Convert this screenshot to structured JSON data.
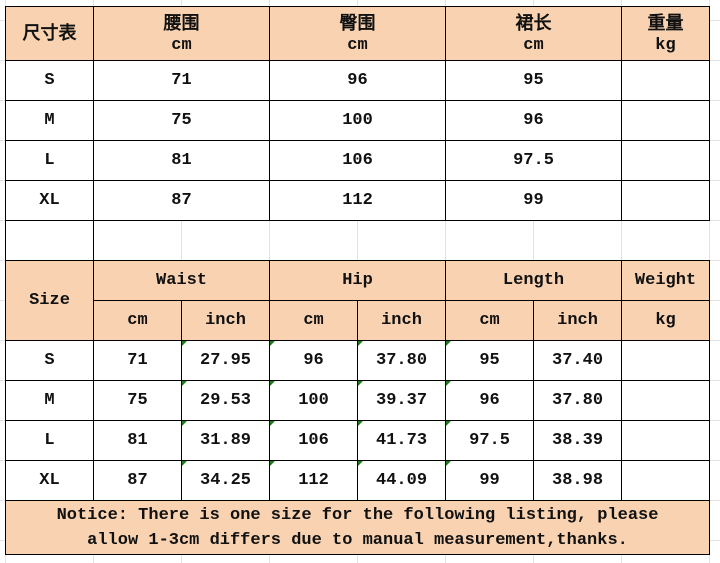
{
  "cn_table": {
    "corner": "尺寸表",
    "headers": [
      {
        "label": "腰围",
        "unit": "cm"
      },
      {
        "label": "臀围",
        "unit": "cm"
      },
      {
        "label": "裙长",
        "unit": "cm"
      },
      {
        "label": "重量",
        "unit": "kg"
      }
    ],
    "rows": [
      [
        "S",
        "71",
        "96",
        "95",
        ""
      ],
      [
        "M",
        "75",
        "100",
        "96",
        ""
      ],
      [
        "L",
        "81",
        "106",
        "97.5",
        ""
      ],
      [
        "XL",
        "87",
        "112",
        "99",
        ""
      ]
    ]
  },
  "en_table": {
    "corner": "Size",
    "groups": [
      "Waist",
      "Hip",
      "Length",
      "Weight"
    ],
    "units": [
      "cm",
      "inch",
      "cm",
      "inch",
      "cm",
      "inch",
      "kg"
    ],
    "rows": [
      [
        "S",
        "71",
        "27.95",
        "96",
        "37.80",
        "95",
        "37.40",
        ""
      ],
      [
        "M",
        "75",
        "29.53",
        "100",
        "39.37",
        "96",
        "37.80",
        ""
      ],
      [
        "L",
        "81",
        "31.89",
        "106",
        "41.73",
        "97.5",
        "38.39",
        ""
      ],
      [
        "XL",
        "87",
        "34.25",
        "112",
        "44.09",
        "99",
        "38.98",
        ""
      ]
    ],
    "notice_line1": "Notice: There is one size for the following listing, please",
    "notice_line2": "allow 1-3cm differs due to manual measurement,thanks.",
    "header_color": "#f9d3b1",
    "marker_color": "#1f7a1f"
  }
}
